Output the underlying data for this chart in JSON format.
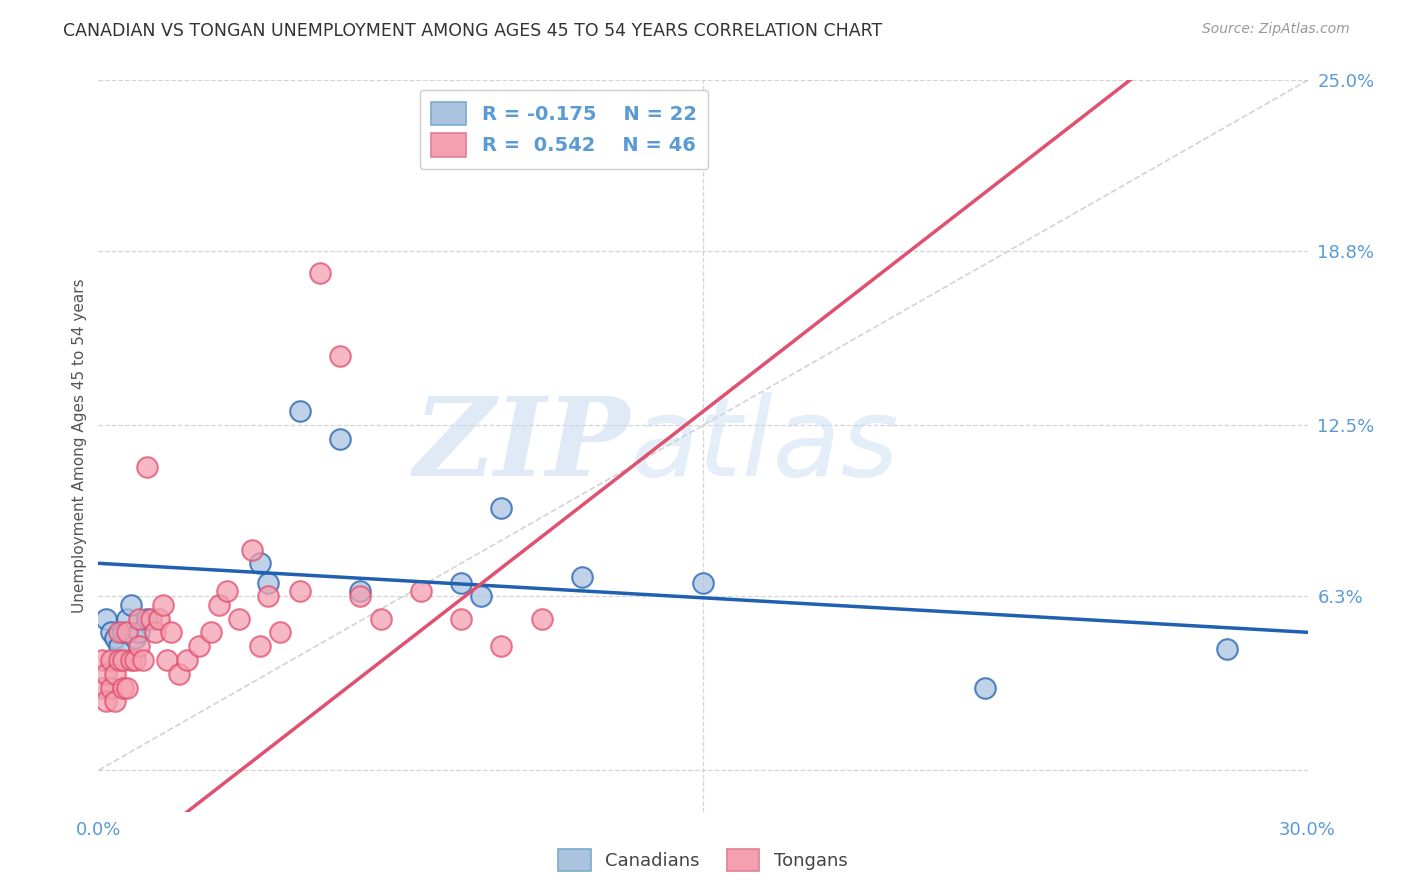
{
  "title": "CANADIAN VS TONGAN UNEMPLOYMENT AMONG AGES 45 TO 54 YEARS CORRELATION CHART",
  "source": "Source: ZipAtlas.com",
  "ylabel": "Unemployment Among Ages 45 to 54 years",
  "xlim": [
    0.0,
    0.3
  ],
  "ylim": [
    -0.015,
    0.25
  ],
  "ytick_labels_right": [
    "6.3%",
    "12.5%",
    "18.8%",
    "25.0%"
  ],
  "ytick_vals_right": [
    0.063,
    0.125,
    0.188,
    0.25
  ],
  "canadians_x": [
    0.002,
    0.003,
    0.004,
    0.005,
    0.006,
    0.007,
    0.008,
    0.009,
    0.01,
    0.012,
    0.04,
    0.042,
    0.05,
    0.06,
    0.065,
    0.09,
    0.095,
    0.1,
    0.12,
    0.15,
    0.22,
    0.28
  ],
  "canadians_y": [
    0.055,
    0.05,
    0.048,
    0.045,
    0.05,
    0.055,
    0.06,
    0.048,
    0.05,
    0.055,
    0.075,
    0.068,
    0.13,
    0.12,
    0.065,
    0.068,
    0.063,
    0.095,
    0.07,
    0.068,
    0.03,
    0.044
  ],
  "tongans_x": [
    0.001,
    0.001,
    0.002,
    0.002,
    0.003,
    0.003,
    0.004,
    0.004,
    0.005,
    0.005,
    0.006,
    0.006,
    0.007,
    0.007,
    0.008,
    0.009,
    0.01,
    0.01,
    0.011,
    0.012,
    0.013,
    0.014,
    0.015,
    0.016,
    0.017,
    0.018,
    0.02,
    0.022,
    0.025,
    0.028,
    0.03,
    0.032,
    0.035,
    0.038,
    0.04,
    0.042,
    0.045,
    0.05,
    0.055,
    0.06,
    0.065,
    0.07,
    0.08,
    0.09,
    0.1,
    0.11
  ],
  "tongans_y": [
    0.03,
    0.04,
    0.025,
    0.035,
    0.03,
    0.04,
    0.025,
    0.035,
    0.04,
    0.05,
    0.03,
    0.04,
    0.03,
    0.05,
    0.04,
    0.04,
    0.045,
    0.055,
    0.04,
    0.11,
    0.055,
    0.05,
    0.055,
    0.06,
    0.04,
    0.05,
    0.035,
    0.04,
    0.045,
    0.05,
    0.06,
    0.065,
    0.055,
    0.08,
    0.045,
    0.063,
    0.05,
    0.065,
    0.18,
    0.15,
    0.063,
    0.055,
    0.065,
    0.055,
    0.045,
    0.055
  ],
  "canadian_color": "#aac4e0",
  "tongan_color": "#f4a0b0",
  "canadian_line_color": "#2060b0",
  "tongan_line_color": "#e05070",
  "reference_line_color": "#c8c8c8",
  "canadian_R": -0.175,
  "canadian_N": 22,
  "tongan_R": 0.542,
  "tongan_N": 46,
  "watermark_zip": "ZIP",
  "watermark_atlas": "atlas",
  "background_color": "#ffffff",
  "grid_color": "#d5d5d5",
  "legend_text_color": "#5b9bd5"
}
